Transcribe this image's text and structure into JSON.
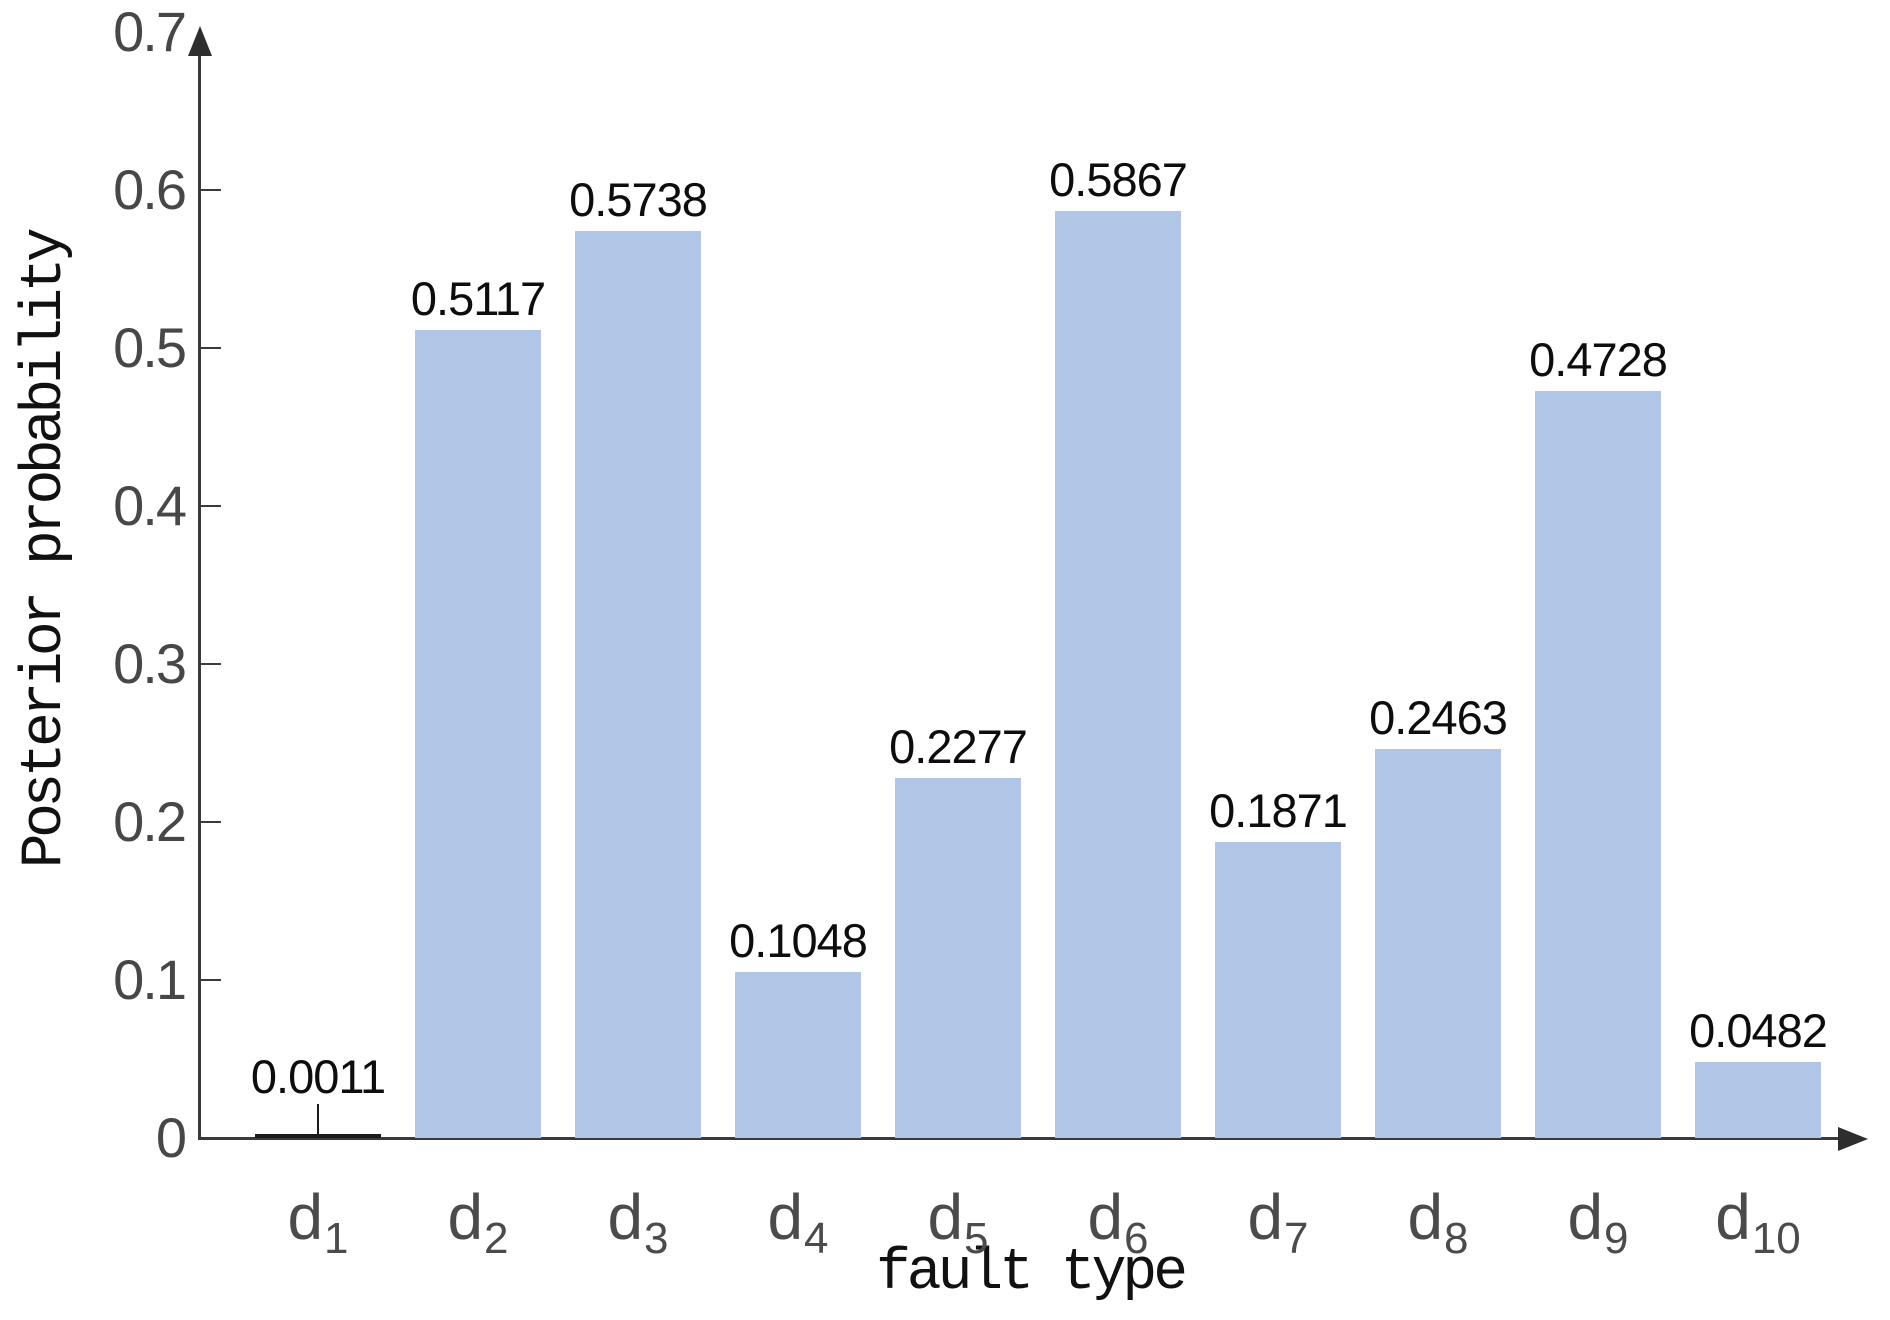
{
  "chart_data": {
    "type": "bar",
    "title": "",
    "xlabel": "fault type",
    "ylabel": "Posterior probability",
    "categories": [
      {
        "base": "d",
        "sub": "1"
      },
      {
        "base": "d",
        "sub": "2"
      },
      {
        "base": "d",
        "sub": "3"
      },
      {
        "base": "d",
        "sub": "4"
      },
      {
        "base": "d",
        "sub": "5"
      },
      {
        "base": "d",
        "sub": "6"
      },
      {
        "base": "d",
        "sub": "7"
      },
      {
        "base": "d",
        "sub": "8"
      },
      {
        "base": "d",
        "sub": "9"
      },
      {
        "base": "d",
        "sub": "10"
      }
    ],
    "values": [
      0.0011,
      0.5117,
      0.5738,
      0.1048,
      0.2277,
      0.5867,
      0.1871,
      0.2463,
      0.4728,
      0.0482
    ],
    "value_labels": [
      "0.0011",
      "0.5117",
      "0.5738",
      "0.1048",
      "0.2277",
      "0.5867",
      "0.1871",
      "0.2463",
      "0.4728",
      "0.0482"
    ],
    "ylim": [
      0,
      0.7
    ],
    "ytick_values": [
      0,
      0.1,
      0.2,
      0.3,
      0.4,
      0.5,
      0.6,
      0.7
    ],
    "ytick_labels": [
      "0",
      "0.1",
      "0.2",
      "0.3",
      "0.4",
      "0.5",
      "0.6",
      "0.7"
    ],
    "grid": "off",
    "legend": "none",
    "bar_color": "#b1c6e7",
    "tiny_bar_color": "#1b1b1b",
    "axis_color": "#3a3a3a",
    "tick_label_color": "#474747",
    "value_label_color": "#0d0d0d",
    "category_label_color": "#4b4b4b"
  }
}
